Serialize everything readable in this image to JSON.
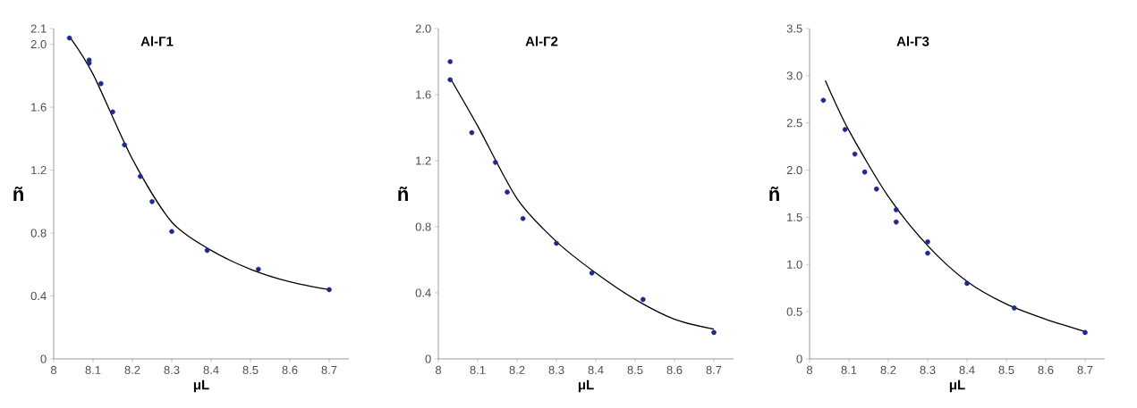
{
  "chart_data": [
    {
      "type": "scatter",
      "title": "Al-Г1",
      "xlabel": "μL",
      "ylabel": "ñ",
      "xlim": [
        8,
        8.75
      ],
      "xticks": [
        8,
        8.1,
        8.2,
        8.3,
        8.4,
        8.5,
        8.6,
        8.7
      ],
      "ylim": [
        0,
        2.1
      ],
      "yticks": [
        0,
        0.4,
        0.8,
        1.2,
        1.6,
        {
          "value": 2,
          "label": "2.0"
        },
        2.1
      ],
      "series": [
        {
          "marker": "circle",
          "color": "#1f2a8a",
          "x": [
            8.04,
            8.09,
            8.09,
            8.12,
            8.15,
            8.18,
            8.22,
            8.25,
            8.3,
            8.39,
            8.52,
            8.7
          ],
          "values": [
            2.04,
            1.9,
            1.88,
            1.75,
            1.57,
            1.36,
            1.16,
            1.0,
            0.81,
            0.69,
            0.57,
            0.44
          ]
        },
        {
          "type": "line",
          "marker": "none",
          "color": "#000000",
          "x": [
            8.04,
            8.1,
            8.2,
            8.3,
            8.4,
            8.5,
            8.6,
            8.7
          ],
          "values": [
            2.05,
            1.81,
            1.27,
            0.87,
            0.69,
            0.57,
            0.49,
            0.44
          ]
        }
      ]
    },
    {
      "type": "scatter",
      "title": "Al-Г2",
      "xlabel": "μL",
      "ylabel": "ñ",
      "xlim": [
        8,
        8.75
      ],
      "xticks": [
        8,
        8.1,
        8.2,
        8.3,
        8.4,
        8.5,
        8.6,
        8.7
      ],
      "ylim": [
        0,
        2.0
      ],
      "yticks": [
        0,
        0.4,
        0.8,
        1.2,
        1.6,
        {
          "value": 2,
          "label": "2.0"
        }
      ],
      "series": [
        {
          "marker": "circle",
          "color": "#1f2a8a",
          "x": [
            8.03,
            8.03,
            8.085,
            8.145,
            8.175,
            8.215,
            8.3,
            8.39,
            8.52,
            8.7
          ],
          "values": [
            1.8,
            1.69,
            1.37,
            1.19,
            1.01,
            0.85,
            0.7,
            0.52,
            0.36,
            0.16
          ]
        },
        {
          "type": "line",
          "marker": "none",
          "color": "#000000",
          "x": [
            8.03,
            8.1,
            8.2,
            8.3,
            8.4,
            8.5,
            8.6,
            8.7
          ],
          "values": [
            1.7,
            1.41,
            0.97,
            0.71,
            0.52,
            0.36,
            0.24,
            0.18
          ]
        }
      ]
    },
    {
      "type": "scatter",
      "title": "Al-Г3",
      "xlabel": "μL",
      "ylabel": "ñ",
      "xlim": [
        8,
        8.75
      ],
      "xticks": [
        8,
        8.1,
        8.2,
        8.3,
        8.4,
        8.5,
        8.6,
        8.7
      ],
      "ylim": [
        0,
        3.5
      ],
      "yticks": [
        0,
        0.5,
        {
          "value": 1,
          "label": "1.0"
        },
        1.5,
        {
          "value": 2,
          "label": "2.0"
        },
        2.5,
        {
          "value": 3,
          "label": "3.0"
        },
        3.5
      ],
      "series": [
        {
          "marker": "circle",
          "color": "#1f2a8a",
          "x": [
            8.035,
            8.09,
            8.115,
            8.14,
            8.17,
            8.22,
            8.22,
            8.3,
            8.3,
            8.4,
            8.52,
            8.7
          ],
          "values": [
            2.74,
            2.43,
            2.17,
            1.98,
            1.8,
            1.58,
            1.45,
            1.24,
            1.12,
            0.8,
            0.54,
            0.28
          ]
        },
        {
          "type": "line",
          "marker": "none",
          "color": "#000000",
          "x": [
            8.04,
            8.1,
            8.2,
            8.3,
            8.4,
            8.5,
            8.6,
            8.7
          ],
          "values": [
            2.95,
            2.42,
            1.72,
            1.2,
            0.82,
            0.58,
            0.42,
            0.29
          ]
        }
      ]
    }
  ]
}
